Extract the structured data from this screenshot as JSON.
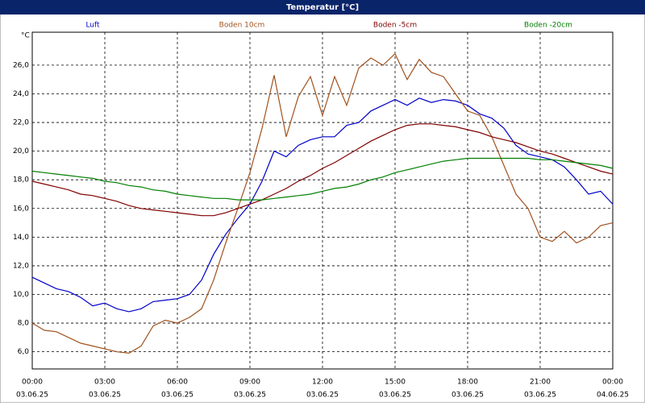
{
  "chart_data": {
    "type": "line",
    "title": "Temperatur [°C]",
    "y_unit": "°C",
    "x": [
      0,
      0.5,
      1,
      1.5,
      2,
      2.5,
      3,
      3.5,
      4,
      4.5,
      5,
      5.5,
      6,
      6.5,
      7,
      7.5,
      8,
      8.5,
      9,
      9.5,
      10,
      10.5,
      11,
      11.5,
      12,
      12.5,
      13,
      13.5,
      14,
      14.5,
      15,
      15.5,
      16,
      16.5,
      17,
      17.5,
      18,
      18.5,
      19,
      19.5,
      20,
      20.5,
      21,
      21.5,
      22,
      22.5,
      23,
      23.5,
      24
    ],
    "xlim": [
      0,
      24
    ],
    "xticks": [
      {
        "value": 0,
        "label": "00:00"
      },
      {
        "value": 3,
        "label": "03:00"
      },
      {
        "value": 6,
        "label": "06:00"
      },
      {
        "value": 9,
        "label": "09:00"
      },
      {
        "value": 12,
        "label": "12:00"
      },
      {
        "value": 15,
        "label": "15:00"
      },
      {
        "value": 18,
        "label": "18:00"
      },
      {
        "value": 21,
        "label": "21:00"
      },
      {
        "value": 24,
        "label": "00:00"
      }
    ],
    "xtick_dates": [
      "03.06.25",
      "03.06.25",
      "03.06.25",
      "03.06.25",
      "03.06.25",
      "03.06.25",
      "03.06.25",
      "03.06.25",
      "04.06.25"
    ],
    "ylim": [
      4.8,
      28.3
    ],
    "yticks": [
      {
        "value": 6,
        "label": "6,0"
      },
      {
        "value": 8,
        "label": "8,0"
      },
      {
        "value": 10,
        "label": "10,0"
      },
      {
        "value": 12,
        "label": "12,0"
      },
      {
        "value": 14,
        "label": "14,0"
      },
      {
        "value": 16,
        "label": "16,0"
      },
      {
        "value": 18,
        "label": "18,0"
      },
      {
        "value": 20,
        "label": "20,0"
      },
      {
        "value": 22,
        "label": "22,0"
      },
      {
        "value": 24,
        "label": "24,0"
      },
      {
        "value": 26,
        "label": "26,0"
      }
    ],
    "grid": true,
    "series": [
      {
        "name": "Luft",
        "color": "#0000c8",
        "values": [
          11.2,
          10.8,
          10.4,
          10.2,
          9.8,
          9.2,
          9.4,
          9.0,
          8.8,
          9.0,
          9.5,
          9.6,
          9.7,
          10.0,
          11.0,
          12.8,
          14.2,
          15.3,
          16.3,
          17.9,
          20.0,
          19.6,
          20.4,
          20.8,
          21.0,
          21.0,
          21.8,
          22.0,
          22.8,
          23.2,
          23.6,
          23.2,
          23.7,
          23.4,
          23.6,
          23.5,
          23.2,
          22.6,
          22.3,
          21.6,
          20.4,
          19.8,
          19.6,
          19.4,
          18.9,
          18.0,
          17.0,
          17.2,
          16.3
        ]
      },
      {
        "name": "Boden 10cm",
        "color": "#a0521e",
        "values": [
          8.0,
          7.5,
          7.4,
          7.0,
          6.6,
          6.4,
          6.2,
          6.0,
          5.9,
          6.4,
          7.8,
          8.2,
          8.0,
          8.4,
          9.0,
          11.0,
          13.6,
          16.0,
          18.5,
          21.6,
          25.3,
          21.0,
          23.8,
          25.2,
          22.5,
          25.2,
          23.2,
          25.8,
          26.5,
          26.0,
          26.8,
          25.0,
          26.4,
          25.5,
          25.2,
          24.0,
          22.8,
          22.5,
          21.0,
          19.0,
          17.0,
          16.0,
          14.0,
          13.7,
          14.4,
          13.6,
          14.0,
          14.8,
          15.0
        ]
      },
      {
        "name": "Boden -5cm",
        "color": "#800000",
        "values": [
          17.9,
          17.7,
          17.5,
          17.3,
          17.0,
          16.9,
          16.7,
          16.5,
          16.2,
          16.0,
          15.9,
          15.8,
          15.7,
          15.6,
          15.5,
          15.5,
          15.7,
          16.0,
          16.3,
          16.6,
          17.0,
          17.4,
          17.9,
          18.3,
          18.8,
          19.2,
          19.7,
          20.2,
          20.7,
          21.1,
          21.5,
          21.8,
          21.9,
          21.9,
          21.8,
          21.7,
          21.5,
          21.3,
          21.0,
          20.8,
          20.6,
          20.3,
          20.0,
          19.8,
          19.5,
          19.2,
          18.9,
          18.6,
          18.4
        ]
      },
      {
        "name": "Boden -20cm",
        "color": "#008000",
        "values": [
          18.6,
          18.5,
          18.4,
          18.3,
          18.2,
          18.1,
          17.9,
          17.8,
          17.6,
          17.5,
          17.3,
          17.2,
          17.0,
          16.9,
          16.8,
          16.7,
          16.7,
          16.6,
          16.6,
          16.6,
          16.7,
          16.8,
          16.9,
          17.0,
          17.2,
          17.4,
          17.5,
          17.7,
          18.0,
          18.2,
          18.5,
          18.7,
          18.9,
          19.1,
          19.3,
          19.4,
          19.5,
          19.5,
          19.5,
          19.5,
          19.5,
          19.5,
          19.4,
          19.4,
          19.3,
          19.2,
          19.1,
          19.0,
          18.8
        ]
      }
    ]
  }
}
